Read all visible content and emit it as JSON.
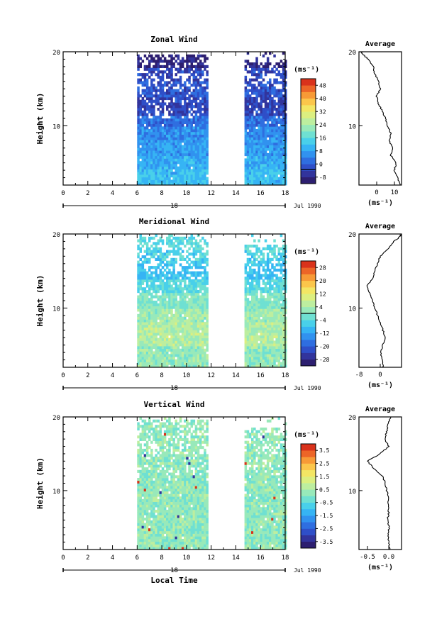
{
  "figure": {
    "xlabel_bottom": "Local Time",
    "date_label": "Jul 1990",
    "date_day": "18"
  },
  "chart_data": [
    {
      "type": "heatmap",
      "panel": "zonal-wind",
      "title": "Zonal Wind",
      "xlabel": "",
      "ylabel": "Height (km)",
      "xlim": [
        0,
        18
      ],
      "ylim": [
        2,
        20
      ],
      "xticks": [
        0,
        2,
        4,
        6,
        8,
        10,
        12,
        14,
        16,
        18
      ],
      "yticks": [
        10,
        20
      ],
      "data_blocks": [
        [
          6,
          11.7
        ],
        [
          14.7,
          18
        ]
      ],
      "colorbar": {
        "unit": "(ms⁻¹)",
        "labels": [
          "48",
          "40",
          "32",
          "24",
          "16",
          "8",
          "0",
          "-8"
        ],
        "range": [
          -8,
          52
        ],
        "contour_level": 0
      },
      "profile_bands": [
        {
          "y": [
            2,
            4
          ],
          "value": 14
        },
        {
          "y": [
            4,
            6
          ],
          "value": 12
        },
        {
          "y": [
            6,
            8
          ],
          "value": 10
        },
        {
          "y": [
            8,
            10
          ],
          "value": 8
        },
        {
          "y": [
            10,
            11.5
          ],
          "value": 5
        },
        {
          "y": [
            11.5,
            14
          ],
          "value": 0
        },
        {
          "y": [
            14,
            16
          ],
          "value": 2
        },
        {
          "y": [
            16,
            18
          ],
          "value": 0
        },
        {
          "y": [
            18,
            19.5
          ],
          "value": -5
        }
      ],
      "average": {
        "title": "Average",
        "xlabel": "(ms⁻¹)",
        "xlim": [
          -10,
          14
        ],
        "xticks": [
          "0",
          "10"
        ],
        "yticks": [
          10,
          20
        ],
        "height": [
          2,
          3,
          4,
          5,
          6,
          7,
          8,
          9,
          10,
          11,
          12,
          13,
          14,
          15,
          16,
          17,
          18,
          19,
          19.5,
          20
        ],
        "value": [
          13,
          12,
          10,
          11,
          8,
          9,
          7,
          8,
          6,
          5,
          3,
          1,
          0,
          2,
          1,
          -1,
          -2,
          -5,
          -7,
          -9
        ]
      }
    },
    {
      "type": "heatmap",
      "panel": "meridional-wind",
      "title": "Meridional Wind",
      "xlabel": "",
      "ylabel": "Height (km)",
      "xlim": [
        0,
        18
      ],
      "ylim": [
        2,
        20
      ],
      "xticks": [
        0,
        2,
        4,
        6,
        8,
        10,
        12,
        14,
        16,
        18
      ],
      "yticks": [
        10,
        20
      ],
      "data_blocks": [
        [
          6,
          11.7
        ],
        [
          14.7,
          18
        ]
      ],
      "colorbar": {
        "unit": "(ms⁻¹)",
        "labels": [
          "28",
          "20",
          "12",
          "4",
          "-4",
          "-12",
          "-20",
          "-28"
        ],
        "range": [
          -32,
          32
        ],
        "contour_level": 0
      },
      "profile_bands": [
        {
          "y": [
            2,
            5
          ],
          "value": 2
        },
        {
          "y": [
            5,
            8
          ],
          "value": 5
        },
        {
          "y": [
            8,
            10
          ],
          "value": 3
        },
        {
          "y": [
            10,
            12
          ],
          "value": 0
        },
        {
          "y": [
            12,
            14
          ],
          "value": -4
        },
        {
          "y": [
            14,
            16
          ],
          "value": -8
        },
        {
          "y": [
            16,
            18
          ],
          "value": -6
        },
        {
          "y": [
            18,
            20
          ],
          "value": -4
        }
      ],
      "average": {
        "title": "Average",
        "xlabel": "(ms⁻¹)",
        "xlim": [
          -8,
          8
        ],
        "xticks": [
          "-8",
          "0"
        ],
        "yticks": [
          10,
          20
        ],
        "height": [
          2,
          3,
          4,
          5,
          6,
          7,
          8,
          9,
          10,
          11,
          12,
          13,
          14,
          15,
          16,
          17,
          18,
          19,
          19.5,
          20
        ],
        "value": [
          1,
          1,
          0,
          1,
          2,
          1,
          0,
          -1,
          -2,
          -3,
          -4,
          -5,
          -3,
          -2,
          -1,
          0,
          3,
          5,
          7,
          8
        ]
      }
    },
    {
      "type": "heatmap",
      "panel": "vertical-wind",
      "title": "Vertical Wind",
      "xlabel": "Local Time",
      "ylabel": "Height (km)",
      "xlim": [
        0,
        18
      ],
      "ylim": [
        2,
        20
      ],
      "xticks": [
        0,
        2,
        4,
        6,
        8,
        10,
        12,
        14,
        16,
        18
      ],
      "yticks": [
        10,
        20
      ],
      "data_blocks": [
        [
          6,
          11.7
        ],
        [
          14.7,
          18
        ]
      ],
      "colorbar": {
        "unit": "(ms⁻¹)",
        "labels": [
          "3.5",
          "2.5",
          "1.5",
          "0.5",
          "-0.5",
          "-1.5",
          "-2.5",
          "-3.5"
        ],
        "range": [
          -4,
          4
        ],
        "contour_level": null
      },
      "profile_bands": [
        {
          "y": [
            2,
            20
          ],
          "value": 0.2
        }
      ],
      "average": {
        "title": "Average",
        "xlabel": "(ms⁻¹)",
        "xlim": [
          -0.7,
          0.3
        ],
        "xticks": [
          "-0.5",
          "0.0"
        ],
        "yticks": [
          10,
          20
        ],
        "height": [
          2,
          3,
          4,
          5,
          6,
          7,
          8,
          9,
          10,
          11,
          12,
          13,
          14,
          15,
          16,
          17,
          18,
          19,
          20
        ],
        "value": [
          0.02,
          0.0,
          -0.02,
          0.01,
          -0.03,
          0.0,
          -0.02,
          0.01,
          -0.05,
          -0.08,
          -0.15,
          -0.35,
          -0.5,
          -0.2,
          0.0,
          -0.1,
          -0.05,
          -0.02,
          0.05
        ]
      }
    }
  ]
}
